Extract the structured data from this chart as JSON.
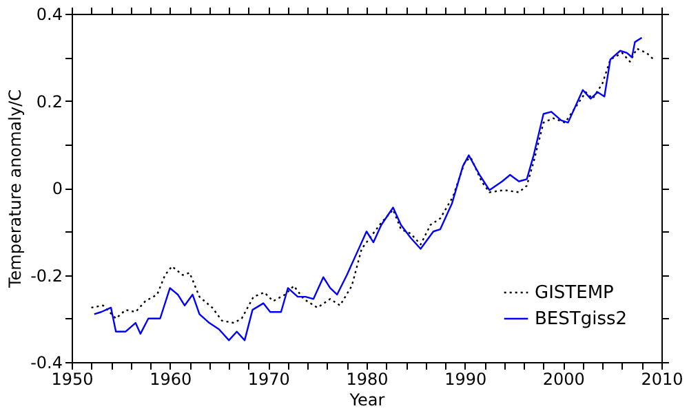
{
  "chart_data": {
    "type": "line",
    "xlabel": "Year",
    "ylabel": "Temperature anomaly/C",
    "xlim": [
      1950,
      2010
    ],
    "ylim": [
      -0.4,
      0.4
    ],
    "xticks": [
      1950,
      {
        "value": 1952,
        "label": null
      },
      {
        "value": 1954,
        "label": null
      },
      {
        "value": 1956,
        "label": null
      },
      {
        "value": 1958,
        "label": null
      },
      1960,
      {
        "value": 1962,
        "label": null
      },
      {
        "value": 1964,
        "label": null
      },
      {
        "value": 1966,
        "label": null
      },
      {
        "value": 1968,
        "label": null
      },
      1970,
      {
        "value": 1972,
        "label": null
      },
      {
        "value": 1974,
        "label": null
      },
      {
        "value": 1976,
        "label": null
      },
      {
        "value": 1978,
        "label": null
      },
      1980,
      {
        "value": 1982,
        "label": null
      },
      {
        "value": 1984,
        "label": null
      },
      {
        "value": 1986,
        "label": null
      },
      {
        "value": 1988,
        "label": null
      },
      1990,
      {
        "value": 1992,
        "label": null
      },
      {
        "value": 1994,
        "label": null
      },
      {
        "value": 1996,
        "label": null
      },
      {
        "value": 1998,
        "label": null
      },
      2000,
      {
        "value": 2002,
        "label": null
      },
      {
        "value": 2004,
        "label": null
      },
      {
        "value": 2006,
        "label": null
      },
      {
        "value": 2008,
        "label": null
      },
      2010
    ],
    "yticks": [
      -0.4,
      {
        "value": -0.3,
        "label": null
      },
      -0.2,
      {
        "value": -0.1,
        "label": null
      },
      0,
      {
        "value": 0.1,
        "label": null
      },
      0.2,
      {
        "value": 0.3,
        "label": null
      },
      0.4
    ],
    "grid": false,
    "legend": "bottom right",
    "series": [
      {
        "name": "GISTEMP",
        "color": "#000000",
        "line_style": "dotted",
        "x": [
          1952,
          1953.2,
          1954.5,
          1955.5,
          1956.5,
          1957.5,
          1958.7,
          1959.5,
          1960.2,
          1961.3,
          1962,
          1963,
          1964.3,
          1965.3,
          1966.5,
          1967.3,
          1968.5,
          1969.6,
          1970.5,
          1971.7,
          1972.6,
          1973.6,
          1975,
          1976.3,
          1977.3,
          1978.5,
          1979.5,
          1980.5,
          1981.5,
          1982.7,
          1983.5,
          1984.5,
          1985.5,
          1986.5,
          1987.5,
          1988.8,
          1990,
          1990.6,
          1991.7,
          1992.5,
          1994,
          1995.5,
          1996.3,
          1997,
          1998,
          1999,
          2000.2,
          2001.4,
          2002.3,
          2003,
          2004,
          2004.8,
          2006,
          2006.8,
          2007.5,
          2008.5,
          2009.2
        ],
        "values": [
          -0.275,
          -0.27,
          -0.3,
          -0.28,
          -0.285,
          -0.26,
          -0.245,
          -0.2,
          -0.18,
          -0.2,
          -0.195,
          -0.25,
          -0.275,
          -0.305,
          -0.31,
          -0.3,
          -0.25,
          -0.24,
          -0.26,
          -0.245,
          -0.225,
          -0.255,
          -0.275,
          -0.255,
          -0.27,
          -0.225,
          -0.14,
          -0.11,
          -0.08,
          -0.05,
          -0.095,
          -0.105,
          -0.13,
          -0.085,
          -0.07,
          -0.02,
          0.06,
          0.07,
          0.015,
          -0.01,
          -0.005,
          -0.01,
          0.005,
          0.06,
          0.15,
          0.16,
          0.15,
          0.19,
          0.22,
          0.205,
          0.24,
          0.295,
          0.31,
          0.29,
          0.32,
          0.31,
          0.295
        ]
      },
      {
        "name": "BESTgiss2",
        "color": "#0000ff",
        "line_style": "solid",
        "x": [
          1952.3,
          1953,
          1954,
          1954.5,
          1955.5,
          1956.5,
          1957,
          1957.8,
          1959,
          1960,
          1960.8,
          1961.5,
          1962.3,
          1963,
          1964,
          1965,
          1966,
          1966.8,
          1967.6,
          1968.4,
          1969.5,
          1970.2,
          1971.3,
          1972,
          1973,
          1973.8,
          1974.6,
          1975.6,
          1976.3,
          1977,
          1978,
          1979,
          1980,
          1980.7,
          1981.5,
          1982.7,
          1983.5,
          1984.5,
          1985.5,
          1986.8,
          1987.5,
          1988.7,
          1989.8,
          1990.4,
          1991.5,
          1992.5,
          1993.8,
          1994.6,
          1995.5,
          1996.3,
          1997,
          1998,
          1998.8,
          1999.8,
          2000.5,
          2001.5,
          2002,
          2002.8,
          2003.5,
          2004.2,
          2004.8,
          2005.8,
          2006.5,
          2007,
          2007.3,
          2008
        ],
        "values": [
          -0.29,
          -0.285,
          -0.275,
          -0.33,
          -0.33,
          -0.31,
          -0.335,
          -0.3,
          -0.3,
          -0.23,
          -0.245,
          -0.27,
          -0.245,
          -0.29,
          -0.31,
          -0.325,
          -0.35,
          -0.33,
          -0.35,
          -0.28,
          -0.265,
          -0.285,
          -0.285,
          -0.23,
          -0.25,
          -0.25,
          -0.255,
          -0.205,
          -0.23,
          -0.245,
          -0.2,
          -0.15,
          -0.1,
          -0.125,
          -0.085,
          -0.045,
          -0.085,
          -0.115,
          -0.14,
          -0.1,
          -0.095,
          -0.035,
          0.05,
          0.075,
          0.03,
          -0.005,
          0.015,
          0.03,
          0.015,
          0.02,
          0.075,
          0.17,
          0.175,
          0.155,
          0.15,
          0.2,
          0.225,
          0.205,
          0.22,
          0.21,
          0.295,
          0.315,
          0.31,
          0.3,
          0.335,
          0.345
        ]
      }
    ]
  }
}
